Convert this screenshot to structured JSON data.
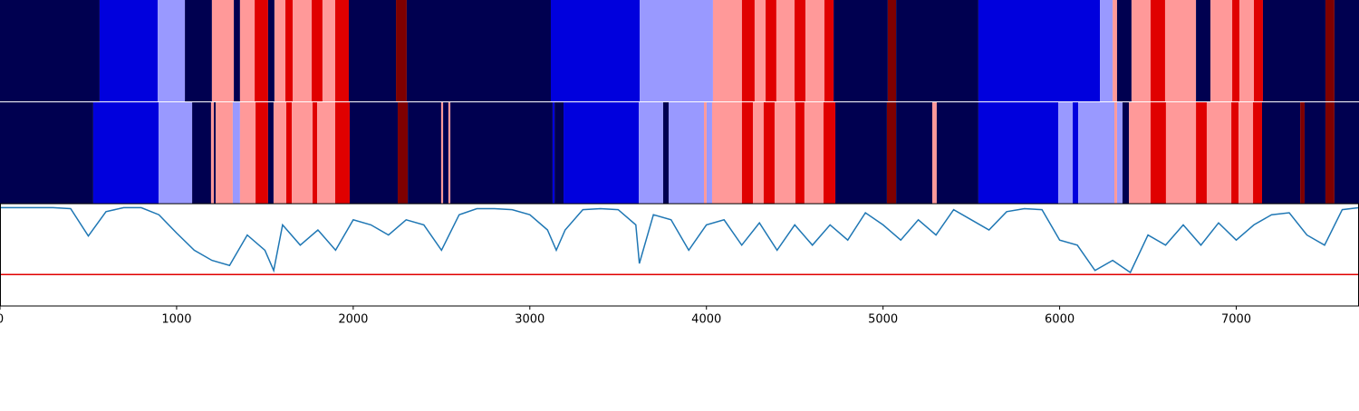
{
  "chart_data": {
    "type": "segments",
    "xlim": [
      0,
      7695
    ],
    "xticks": [
      0,
      1000,
      2000,
      3000,
      4000,
      5000,
      6000,
      7000
    ],
    "rows": [
      {
        "edges": [
          0,
          564,
          893,
          1047,
          1200,
          1324,
          1359,
          1442,
          1518,
          1554,
          1616,
          1657,
          1765,
          1826,
          1898,
          1975,
          2242,
          2303,
          3119,
          3622,
          4037,
          4201,
          4273,
          4335,
          4396,
          4499,
          4561,
          4668,
          4720,
          5027,
          5074,
          5540,
          6228,
          6300,
          6325,
          6407,
          6515,
          6597,
          6772,
          6854,
          6977,
          7018,
          7100,
          7151,
          7505,
          7556,
          7695
        ],
        "colors": [
          "#000050",
          "#0000dd",
          "#9999ff",
          "#000050",
          "#ff9999",
          "#000050",
          "#ff9999",
          "#e00000",
          "#000050",
          "#ff9999",
          "#e00000",
          "#ff9999",
          "#e00000",
          "#ff9999",
          "#e00000",
          "#000050",
          "#7f0000",
          "#000050",
          "#0000dd",
          "#9999ff",
          "#ff9999",
          "#e00000",
          "#ff9999",
          "#e00000",
          "#ff9999",
          "#e00000",
          "#ff9999",
          "#e00000",
          "#000050",
          "#7f0000",
          "#000050",
          "#0000dd",
          "#9999ff",
          "#ff9999",
          "#000050",
          "#ff9999",
          "#e00000",
          "#ff9999",
          "#000050",
          "#ff9999",
          "#e00000",
          "#ff9999",
          "#e00000",
          "#000050",
          "#7f0000",
          "#000050"
        ]
      },
      {
        "edges": [
          0,
          528,
          898,
          1088,
          1195,
          1211,
          1221,
          1236,
          1318,
          1359,
          1447,
          1518,
          1549,
          1621,
          1652,
          1770,
          1796,
          1898,
          1980,
          2252,
          2309,
          2498,
          2509,
          2539,
          2550,
          3129,
          3140,
          3191,
          3617,
          3755,
          3786,
          3986,
          4001,
          4032,
          4201,
          4263,
          4324,
          4386,
          4504,
          4555,
          4663,
          4730,
          5022,
          5074,
          5279,
          5304,
          5540,
          5992,
          6074,
          6105,
          6310,
          6325,
          6356,
          6392,
          6515,
          6602,
          6772,
          6833,
          6972,
          7013,
          7095,
          7146,
          7362,
          7387,
          7505,
          7556,
          7695
        ],
        "colors": [
          "#000050",
          "#0000dd",
          "#9999ff",
          "#000050",
          "#ff9999",
          "#000050",
          "#ff9999",
          "#ff9999",
          "#9999ff",
          "#ff9999",
          "#e00000",
          "#000050",
          "#ff9999",
          "#e00000",
          "#ff9999",
          "#e00000",
          "#ff9999",
          "#e00000",
          "#000050",
          "#7f0000",
          "#000050",
          "#ff9999",
          "#000050",
          "#ff9999",
          "#000050",
          "#0000dd",
          "#000050",
          "#0000dd",
          "#9999ff",
          "#000050",
          "#9999ff",
          "#ff9999",
          "#9999ff",
          "#ff9999",
          "#e00000",
          "#ff9999",
          "#e00000",
          "#ff9999",
          "#e00000",
          "#ff9999",
          "#e00000",
          "#000050",
          "#7f0000",
          "#000050",
          "#ff9999",
          "#000050",
          "#0000dd",
          "#9999ff",
          "#0000dd",
          "#9999ff",
          "#ff9999",
          "#9999ff",
          "#000050",
          "#ff9999",
          "#e00000",
          "#ff9999",
          "#e00000",
          "#ff9999",
          "#e00000",
          "#ff9999",
          "#e00000",
          "#000050",
          "#7f0000",
          "#000050",
          "#7f0000",
          "#000050"
        ]
      }
    ],
    "line": {
      "color": "#1f77b4",
      "ylim": [
        0,
        1
      ],
      "threshold": 0.31,
      "threshold_color": "#e00000",
      "x": [
        0,
        100,
        200,
        300,
        400,
        500,
        600,
        700,
        800,
        900,
        1000,
        1100,
        1200,
        1300,
        1400,
        1500,
        1550,
        1600,
        1700,
        1800,
        1900,
        2000,
        2100,
        2200,
        2300,
        2400,
        2500,
        2600,
        2700,
        2800,
        2900,
        3000,
        3100,
        3150,
        3200,
        3300,
        3400,
        3500,
        3600,
        3620,
        3700,
        3800,
        3900,
        4000,
        4100,
        4200,
        4300,
        4400,
        4500,
        4600,
        4700,
        4800,
        4900,
        5000,
        5100,
        5200,
        5300,
        5400,
        5500,
        5600,
        5700,
        5800,
        5900,
        6000,
        6100,
        6200,
        6300,
        6400,
        6500,
        6600,
        6700,
        6800,
        6900,
        7000,
        7100,
        7200,
        7300,
        7400,
        7500,
        7600,
        7695
      ],
      "values": [
        0.97,
        0.97,
        0.97,
        0.97,
        0.96,
        0.69,
        0.93,
        0.97,
        0.97,
        0.9,
        0.72,
        0.55,
        0.45,
        0.4,
        0.7,
        0.55,
        0.35,
        0.8,
        0.6,
        0.75,
        0.55,
        0.85,
        0.8,
        0.7,
        0.85,
        0.8,
        0.55,
        0.9,
        0.96,
        0.96,
        0.95,
        0.9,
        0.75,
        0.55,
        0.75,
        0.95,
        0.96,
        0.95,
        0.8,
        0.42,
        0.9,
        0.85,
        0.55,
        0.8,
        0.85,
        0.6,
        0.82,
        0.55,
        0.8,
        0.6,
        0.8,
        0.65,
        0.92,
        0.8,
        0.65,
        0.85,
        0.7,
        0.95,
        0.85,
        0.75,
        0.93,
        0.96,
        0.95,
        0.65,
        0.6,
        0.35,
        0.45,
        0.33,
        0.7,
        0.6,
        0.8,
        0.6,
        0.82,
        0.65,
        0.8,
        0.9,
        0.92,
        0.7,
        0.6,
        0.95,
        0.97
      ]
    }
  }
}
